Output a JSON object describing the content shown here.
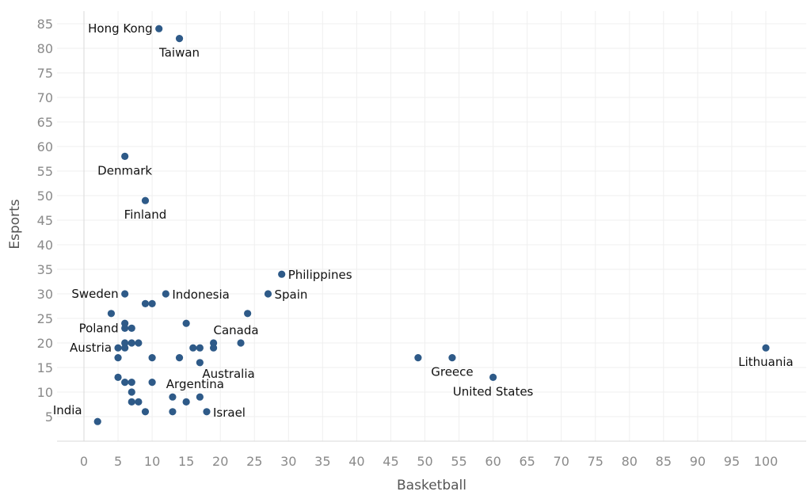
{
  "chart_data": {
    "type": "scatter",
    "title": "",
    "xlabel": "Basketball",
    "ylabel": "Esports",
    "xlim": [
      -4,
      105
    ],
    "ylim": [
      0,
      88
    ],
    "x_ticks": [
      0,
      5,
      10,
      15,
      20,
      25,
      30,
      35,
      40,
      45,
      50,
      55,
      60,
      65,
      70,
      75,
      80,
      85,
      90,
      95,
      100
    ],
    "y_ticks": [
      5,
      10,
      15,
      20,
      25,
      30,
      35,
      40,
      45,
      50,
      55,
      60,
      65,
      70,
      75,
      80,
      85
    ],
    "grid": true,
    "point_color": "#2e5a88",
    "points": [
      {
        "x": 11,
        "y": 84,
        "label": "Hong Kong",
        "anchor": "left"
      },
      {
        "x": 14,
        "y": 82,
        "label": "Taiwan",
        "anchor": "below"
      },
      {
        "x": 6,
        "y": 58,
        "label": "Denmark",
        "anchor": "below"
      },
      {
        "x": 9,
        "y": 49,
        "label": "Finland",
        "anchor": "below"
      },
      {
        "x": 29,
        "y": 34,
        "label": "Philippines",
        "anchor": "right"
      },
      {
        "x": 6,
        "y": 30,
        "label": "Sweden",
        "anchor": "left"
      },
      {
        "x": 12,
        "y": 30,
        "label": "Indonesia",
        "anchor": "right"
      },
      {
        "x": 27,
        "y": 30,
        "label": "Spain",
        "anchor": "right"
      },
      {
        "x": 9,
        "y": 28
      },
      {
        "x": 10,
        "y": 28
      },
      {
        "x": 4,
        "y": 26
      },
      {
        "x": 24,
        "y": 26
      },
      {
        "x": 6,
        "y": 24
      },
      {
        "x": 15,
        "y": 24
      },
      {
        "x": 6,
        "y": 23,
        "label": "Poland",
        "anchor": "left"
      },
      {
        "x": 7,
        "y": 23
      },
      {
        "x": 6,
        "y": 20
      },
      {
        "x": 7,
        "y": 20
      },
      {
        "x": 8,
        "y": 20
      },
      {
        "x": 19,
        "y": 20
      },
      {
        "x": 23,
        "y": 20,
        "label": "Canada",
        "anchor": "above"
      },
      {
        "x": 5,
        "y": 19,
        "label": "Austria",
        "anchor": "left"
      },
      {
        "x": 6,
        "y": 19
      },
      {
        "x": 16,
        "y": 19
      },
      {
        "x": 17,
        "y": 19
      },
      {
        "x": 19,
        "y": 19
      },
      {
        "x": 5,
        "y": 17
      },
      {
        "x": 10,
        "y": 17
      },
      {
        "x": 14,
        "y": 17
      },
      {
        "x": 17,
        "y": 16,
        "label": "Australia",
        "anchor": "below-right"
      },
      {
        "x": 49,
        "y": 17
      },
      {
        "x": 54,
        "y": 17,
        "label": "Greece",
        "anchor": "below"
      },
      {
        "x": 100,
        "y": 19,
        "label": "Lithuania",
        "anchor": "below"
      },
      {
        "x": 5,
        "y": 13
      },
      {
        "x": 60,
        "y": 13,
        "label": "United States",
        "anchor": "below"
      },
      {
        "x": 6,
        "y": 12
      },
      {
        "x": 7,
        "y": 12
      },
      {
        "x": 10,
        "y": 12
      },
      {
        "x": 7,
        "y": 10
      },
      {
        "x": 13,
        "y": 9
      },
      {
        "x": 17,
        "y": 9,
        "label": "Argentina",
        "anchor": "above"
      },
      {
        "x": 7,
        "y": 8
      },
      {
        "x": 8,
        "y": 8
      },
      {
        "x": 15,
        "y": 8
      },
      {
        "x": 9,
        "y": 6
      },
      {
        "x": 13,
        "y": 6
      },
      {
        "x": 18,
        "y": 6,
        "label": "Israel",
        "anchor": "right"
      },
      {
        "x": 2,
        "y": 4,
        "label": "India",
        "anchor": "above-left"
      }
    ]
  }
}
